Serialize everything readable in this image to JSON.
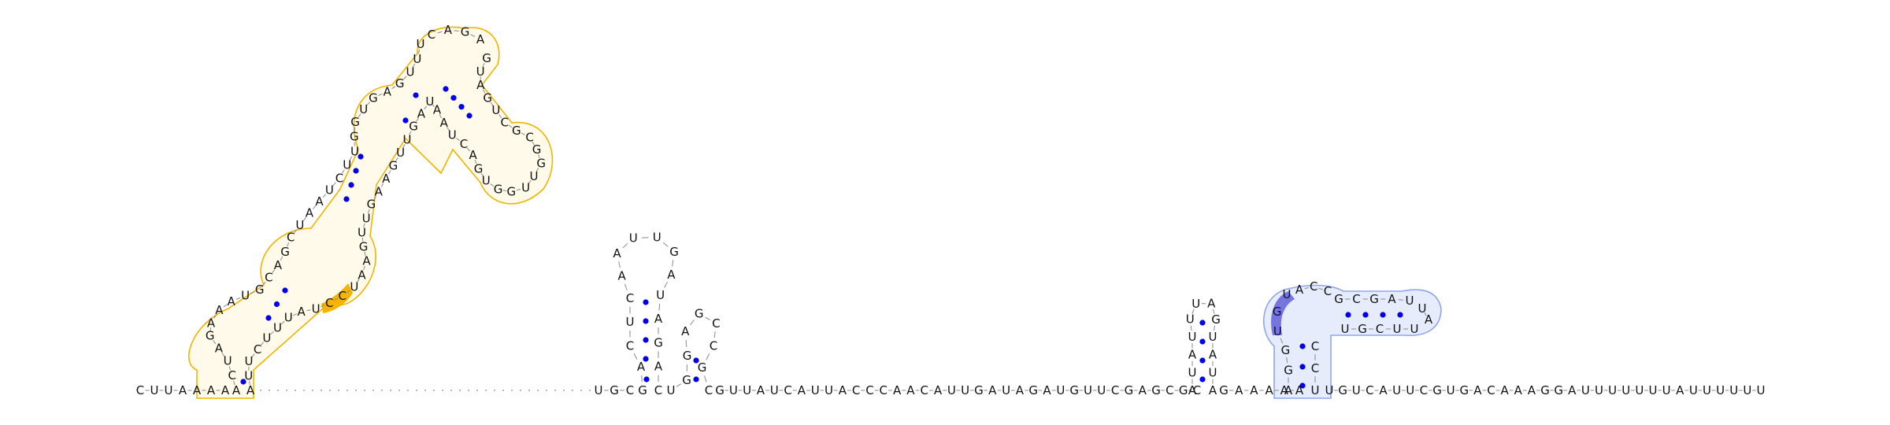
{
  "colors": {
    "nucleotide": "#111111",
    "backbone": "#8a8a8a",
    "base_pair": "#0000ee",
    "domain1_outline": "#f0b400",
    "domain1_fill": "rgba(255,236,170,0.25)",
    "domain1_highlight": "#f5b400",
    "domain2_outline": "#8fa6ee",
    "domain2_fill": "rgba(200,212,248,0.45)",
    "domain2_highlight": "#7474e6"
  },
  "structure": {
    "five_prime_run": [
      "C",
      "U",
      "U",
      "A",
      "A",
      "A",
      "A"
    ],
    "helix1": {
      "left_rise": [
        "A",
        "C",
        "U",
        "A",
        "G",
        "A",
        "A",
        "A",
        "U",
        "G",
        "C",
        "A",
        "G",
        "C",
        "U",
        "A",
        "A",
        "U",
        "C",
        "U",
        "U",
        "G",
        "G",
        "U",
        "G",
        "A",
        "G",
        "U",
        "U",
        "U"
      ],
      "top_loop": [
        "C",
        "A",
        "G",
        "A"
      ],
      "right_desc": [
        "G",
        "U",
        "A",
        "G",
        "U",
        "C",
        "G",
        "C",
        "G",
        "G",
        "U",
        "U",
        "G",
        "G",
        "U",
        "G",
        "A",
        "C",
        "U",
        "A",
        "A",
        "U",
        "A",
        "G",
        "U",
        "U",
        "G",
        "A",
        "A",
        "G",
        "U",
        "U",
        "G",
        "A",
        "A",
        "U",
        "C",
        "C",
        "U",
        "A",
        "U",
        "U",
        "U",
        "C",
        "U",
        "U",
        "A"
      ],
      "highlight": [
        "C",
        "U",
        "A"
      ]
    },
    "linker": [
      "U",
      "G",
      "C"
    ],
    "hairpin2": [
      "G",
      "A",
      "C",
      "U",
      "C",
      "A",
      "A",
      "U",
      "U",
      "G",
      "A",
      "U",
      "A",
      "G",
      "A",
      "C"
    ],
    "hairpin3": [
      "U",
      "G",
      "G",
      "A",
      "G",
      "C",
      "C",
      "G",
      "C"
    ],
    "middle_run": [
      "G",
      "U",
      "U",
      "A",
      "U",
      "C",
      "A",
      "U",
      "U",
      "A",
      "C",
      "C",
      "C",
      "A",
      "A",
      "C",
      "A",
      "U",
      "U",
      "G",
      "A",
      "U",
      "A",
      "G",
      "A",
      "U",
      "G",
      "U",
      "U",
      "C",
      "G",
      "A",
      "G",
      "C",
      "G",
      "C"
    ],
    "hairpin4": [
      "A",
      "U",
      "A",
      "U",
      "U",
      "U",
      "A",
      "G",
      "U",
      "A",
      "U",
      "A"
    ],
    "hairpin4_tail": [
      "G",
      "A",
      "A",
      "A",
      "A",
      "A"
    ],
    "domain2": {
      "stem_left": [
        "A",
        "G",
        "G",
        "U",
        "G",
        "U"
      ],
      "loop_top": [
        "A",
        "C",
        "C"
      ],
      "arm_top": [
        "G",
        "C",
        "G",
        "A",
        "U"
      ],
      "arm_end": [
        "U",
        "A"
      ],
      "arm_bottom": [
        "U",
        "U",
        "C",
        "G",
        "U"
      ],
      "stem_right": [
        "C",
        "C",
        "U"
      ],
      "highlight": [
        "G",
        "U",
        "U"
      ]
    },
    "three_prime_run": [
      "U",
      "G",
      "U",
      "C",
      "A",
      "U",
      "U",
      "C",
      "G",
      "U",
      "G",
      "A",
      "C",
      "A",
      "A",
      "A",
      "G",
      "G",
      "A",
      "U",
      "U",
      "U",
      "U",
      "U",
      "U",
      "U",
      "A",
      "U",
      "U",
      "U",
      "U",
      "U",
      "U"
    ]
  }
}
